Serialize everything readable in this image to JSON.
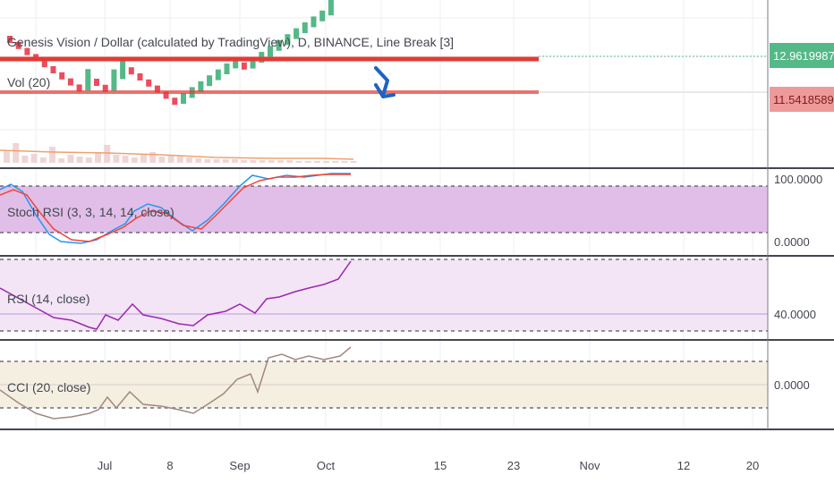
{
  "chart": {
    "title": "Genesis Vision / Dollar (calculated by TradingView), D, BINANCE, Line Break [3]",
    "volume_label": "Vol (20)",
    "last_price": "12.96199872",
    "resistance_price": "11.54185891",
    "x_ticks": [
      "Jul",
      "8",
      "Sep",
      "Oct",
      "15",
      "23",
      "Nov",
      "12",
      "20"
    ],
    "colors": {
      "up": "#53b987",
      "down": "#eb4d5c",
      "resistance_line": "#e53935",
      "stoch_k": "#2196f3",
      "stoch_d": "#f44336",
      "rsi": "#9c27b0",
      "cci": "#a1887f",
      "stoch_band": "#e1bee7",
      "rsi_band": "#f3e5f5",
      "cci_band": "#f5efe2"
    }
  },
  "indicators": {
    "stoch": {
      "label": "Stoch RSI (3, 3, 14, 14, close)",
      "ticks": [
        "100.0000",
        "0.0000"
      ]
    },
    "rsi": {
      "label": "RSI (14, close)",
      "ticks": [
        "40.0000"
      ]
    },
    "cci": {
      "label": "CCI (20, close)",
      "ticks": [
        "0.0000"
      ]
    }
  },
  "chart_data": {
    "type": "line",
    "bricks": [
      {
        "d": "down"
      },
      {
        "d": "down"
      },
      {
        "d": "down"
      },
      {
        "d": "down"
      },
      {
        "d": "down"
      },
      {
        "d": "down"
      },
      {
        "d": "down"
      },
      {
        "d": "down"
      },
      {
        "d": "down"
      },
      {
        "d": "up"
      },
      {
        "d": "down"
      },
      {
        "d": "down"
      },
      {
        "d": "up"
      },
      {
        "d": "up"
      },
      {
        "d": "down"
      },
      {
        "d": "down"
      },
      {
        "d": "down"
      },
      {
        "d": "down"
      },
      {
        "d": "down"
      },
      {
        "d": "down"
      },
      {
        "d": "up"
      },
      {
        "d": "up"
      },
      {
        "d": "up"
      },
      {
        "d": "up"
      },
      {
        "d": "up"
      },
      {
        "d": "up"
      },
      {
        "d": "up"
      },
      {
        "d": "down"
      },
      {
        "d": "up"
      },
      {
        "d": "up"
      },
      {
        "d": "up"
      },
      {
        "d": "up"
      },
      {
        "d": "up"
      },
      {
        "d": "up"
      },
      {
        "d": "up"
      },
      {
        "d": "up"
      },
      {
        "d": "up"
      },
      {
        "d": "up"
      }
    ]
  }
}
